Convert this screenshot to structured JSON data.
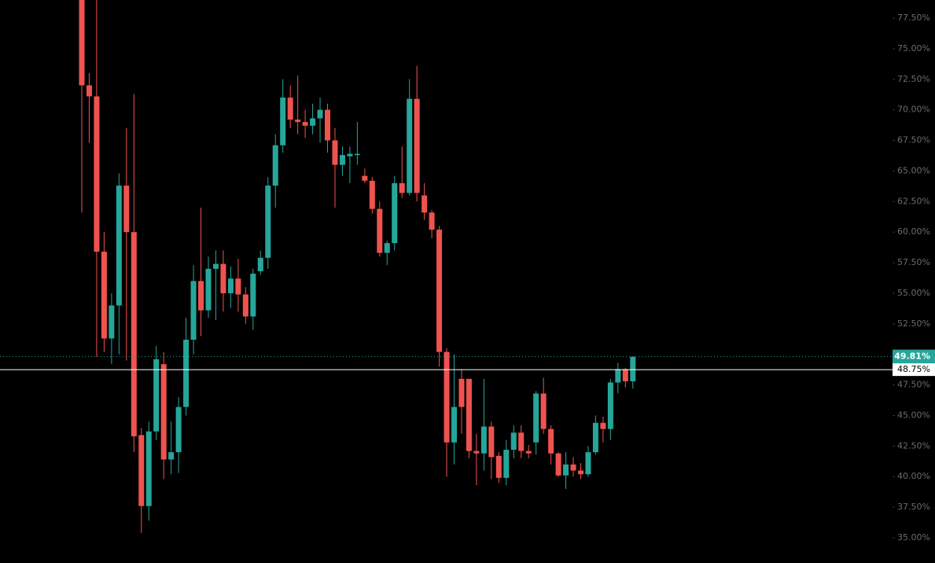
{
  "chart_data": {
    "type": "candlestick",
    "up_color": "#26a69a",
    "down_color": "#ef5350",
    "ylim": [
      32.94,
      78.98
    ],
    "yticks": [
      {
        "value": 35,
        "label": "35.00%"
      },
      {
        "value": 37.5,
        "label": "37.50%"
      },
      {
        "value": 40,
        "label": "40.00%"
      },
      {
        "value": 42.5,
        "label": "42.50%"
      },
      {
        "value": 45,
        "label": "45.00%"
      },
      {
        "value": 47.5,
        "label": "47.50%"
      },
      {
        "value": 52.5,
        "label": "52.50%"
      },
      {
        "value": 55,
        "label": "55.00%"
      },
      {
        "value": 57.5,
        "label": "57.50%"
      },
      {
        "value": 60,
        "label": "60.00%"
      },
      {
        "value": 62.5,
        "label": "62.50%"
      },
      {
        "value": 65,
        "label": "65.00%"
      },
      {
        "value": 67.5,
        "label": "67.50%"
      },
      {
        "value": 70,
        "label": "70.00%"
      },
      {
        "value": 72.5,
        "label": "72.50%"
      },
      {
        "value": 75,
        "label": "75.00%"
      },
      {
        "value": 77.5,
        "label": "77.50%"
      }
    ],
    "last_price": {
      "value": 49.81,
      "label": "49.81%"
    },
    "crosshair_price": {
      "value": 48.75,
      "label": "48.75%"
    },
    "open": [
      80,
      72.0,
      71.1,
      58.4,
      51.3,
      54.0,
      63.8,
      60.0,
      43.4,
      37.6,
      43.7,
      49.2,
      41.4,
      42.0,
      45.7,
      51.2,
      56.0,
      53.6,
      57.0,
      57.4,
      55.0,
      56.2,
      54.9,
      53.1,
      56.8,
      57.9,
      63.8,
      67.1,
      71.0,
      69.2,
      69.0,
      68.7,
      69.3,
      70.0,
      67.5,
      65.5,
      66.2,
      66.3,
      64.6,
      64.2,
      61.9,
      58.3,
      59.1,
      64.0,
      63.2,
      70.9,
      63.0,
      61.6,
      60.2,
      50.2,
      42.8,
      48.0,
      48.0,
      42.1,
      41.9,
      44.1,
      41.7,
      39.9,
      42.2,
      43.6,
      42.1,
      42.8,
      46.8,
      43.9,
      41.9,
      40.1,
      41.0,
      40.5,
      40.2,
      42.0,
      44.4,
      43.9,
      47.7,
      48.8,
      47.8
    ],
    "high": [
      80,
      73.0,
      79,
      60.0,
      55.0,
      64.8,
      68.5,
      71.3,
      44.0,
      44.5,
      50.7,
      50.2,
      44.5,
      46.5,
      53.0,
      57.3,
      62.0,
      58.0,
      58.5,
      58.5,
      57.2,
      57.8,
      55.5,
      57.0,
      58.5,
      64.5,
      68.0,
      72.5,
      72.0,
      72.8,
      70.0,
      70.5,
      71.0,
      70.5,
      68.5,
      67.0,
      67.0,
      69.0,
      65.2,
      64.5,
      62.5,
      59.3,
      64.6,
      67.0,
      72.5,
      73.6,
      64.0,
      61.8,
      60.5,
      50.5,
      50.0,
      48.8,
      48.0,
      43.5,
      48.0,
      44.5,
      42.0,
      43.0,
      44.2,
      44.2,
      42.6,
      47.0,
      48.1,
      44.2,
      42.0,
      42.0,
      41.6,
      41.1,
      42.5,
      45.0,
      44.9,
      48.0,
      49.3,
      48.9,
      49.81
    ],
    "low": [
      61.6,
      67.3,
      49.8,
      50.2,
      49.2,
      50.0,
      49.5,
      42.0,
      35.4,
      36.4,
      43.0,
      39.8,
      40.2,
      40.3,
      45.0,
      50.0,
      51.5,
      53.0,
      52.8,
      53.5,
      53.8,
      53.5,
      52.5,
      52.0,
      56.5,
      57.0,
      62.0,
      66.5,
      68.5,
      68.0,
      67.7,
      68.0,
      67.3,
      66.5,
      62.0,
      64.6,
      64.0,
      65.5,
      64.0,
      61.5,
      58.0,
      57.3,
      58.5,
      62.8,
      63.0,
      62.5,
      61.0,
      59.5,
      49.0,
      40.0,
      41.0,
      43.5,
      41.5,
      39.3,
      40.5,
      39.8,
      39.5,
      39.3,
      41.5,
      41.5,
      41.5,
      41.8,
      43.5,
      41.0,
      40.0,
      39.0,
      40.0,
      39.8,
      40.0,
      41.8,
      42.8,
      43.0,
      46.8,
      47.3,
      47.2
    ],
    "close": [
      72.0,
      71.1,
      58.4,
      51.3,
      54.0,
      63.8,
      60.0,
      43.3,
      37.6,
      43.7,
      49.6,
      41.4,
      42.0,
      45.7,
      51.2,
      56.0,
      53.6,
      57.0,
      57.4,
      55.0,
      56.2,
      54.9,
      53.1,
      56.6,
      57.9,
      63.8,
      67.1,
      71.0,
      69.2,
      69.0,
      68.7,
      69.3,
      70.0,
      67.5,
      65.5,
      66.3,
      66.4,
      66.4,
      64.2,
      61.9,
      58.3,
      59.1,
      64.0,
      63.2,
      70.9,
      63.2,
      61.6,
      60.2,
      50.2,
      42.8,
      45.7,
      45.7,
      42.1,
      41.9,
      44.1,
      41.6,
      39.9,
      42.2,
      43.6,
      42.1,
      41.9,
      46.8,
      43.9,
      41.9,
      40.1,
      41.0,
      40.5,
      40.2,
      42.0,
      44.4,
      43.9,
      47.7,
      48.8,
      47.8,
      49.81
    ]
  }
}
